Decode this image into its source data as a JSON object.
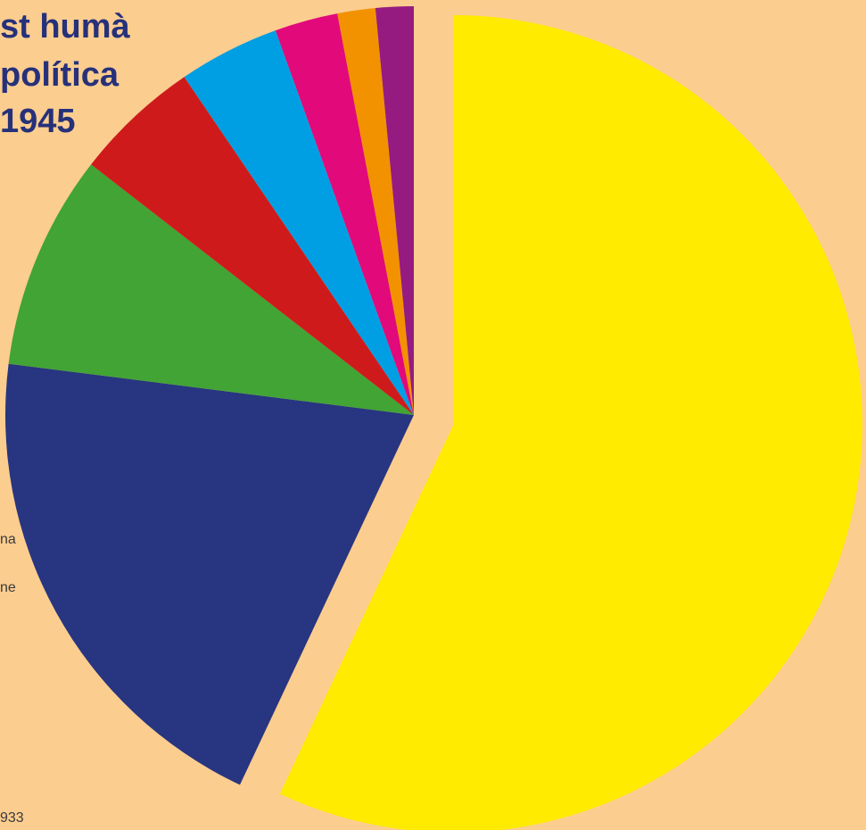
{
  "title": {
    "lines": [
      "st humà",
      "política",
      "1945"
    ]
  },
  "side_labels": [
    "na",
    "ne"
  ],
  "footer": "933",
  "chart_data": {
    "type": "pie",
    "start_angle_deg": 0,
    "direction": "clockwise",
    "slices": [
      {
        "value": 57.0,
        "color": "#FFEB00",
        "exploded": true
      },
      {
        "value": 20.0,
        "color": "#283580"
      },
      {
        "value": 8.5,
        "color": "#41A435"
      },
      {
        "value": 5.0,
        "color": "#CF1A1C"
      },
      {
        "value": 4.0,
        "color": "#009FE3"
      },
      {
        "value": 2.5,
        "color": "#E2097B"
      },
      {
        "value": 1.5,
        "color": "#F39200"
      },
      {
        "value": 1.5,
        "color": "#951B81"
      }
    ]
  }
}
